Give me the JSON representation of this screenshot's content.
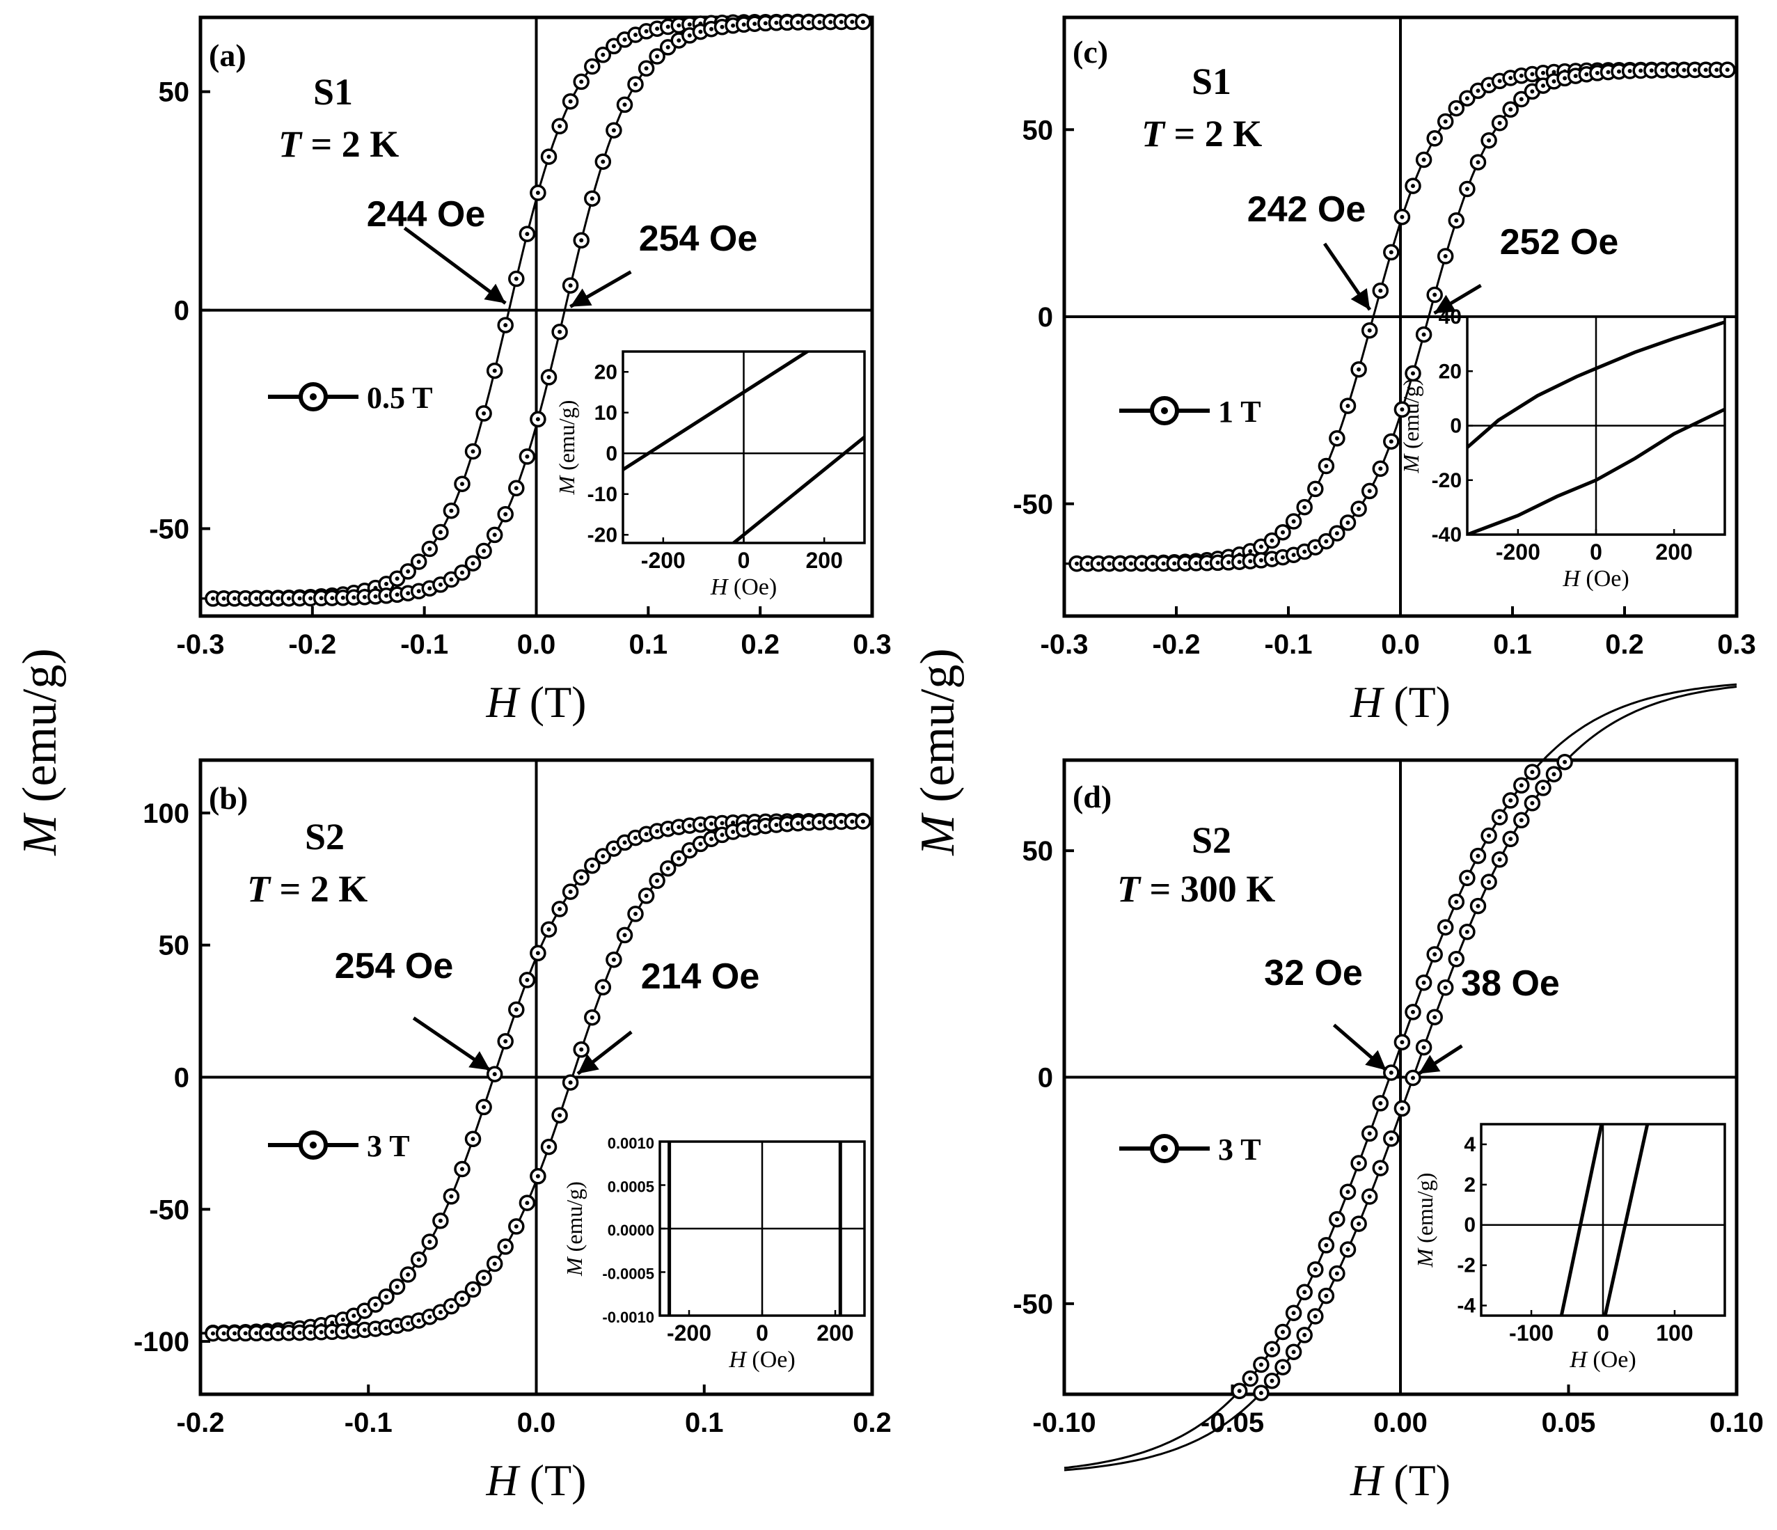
{
  "shared_ylabel": "M (emu/g)",
  "chart_data": [
    {
      "id": "a",
      "type": "line",
      "panel_label": "(a)",
      "sample": "S1",
      "temperature_var": "T",
      "temperature_text": "= 2 K",
      "xlabel_var": "H",
      "xlabel_unit": "(T)",
      "xlim": [
        -0.3,
        0.3
      ],
      "ylim": [
        -70,
        67
      ],
      "xticks": [
        -0.3,
        -0.2,
        -0.1,
        0.0,
        0.1,
        0.2,
        0.3
      ],
      "xtick_labels": [
        "-0.3",
        "-0.2",
        "-0.1",
        "0.0",
        "0.1",
        "0.2",
        "0.3"
      ],
      "yticks": [
        -50,
        0,
        50
      ],
      "ytick_labels": [
        "-50",
        "0",
        "50"
      ],
      "loop": {
        "ms": 66,
        "hc_left": -0.0244,
        "hc_right": 0.0254,
        "width": 0.06
      },
      "legend": {
        "label": "0.5 T",
        "position": "left-middle"
      },
      "annotations": [
        {
          "text": "244 Oe",
          "target_x": -0.0244,
          "target_y": 0
        },
        {
          "text": "254 Oe",
          "target_x": 0.0254,
          "target_y": 0
        }
      ],
      "inset": {
        "xlabel_var": "H",
        "xlabel_unit": "(Oe)",
        "ylabel_var": "M",
        "ylabel_unit": "(emu/g)",
        "xlim": [
          -300,
          300
        ],
        "ylim": [
          -22,
          25
        ],
        "xticks": [
          -200,
          0,
          200
        ],
        "xtick_labels": [
          "-200",
          "0",
          "200"
        ],
        "yticks": [
          20,
          10,
          0,
          -10,
          -20
        ],
        "ytick_labels": [
          "20",
          "10",
          "0",
          "-10",
          "-20"
        ],
        "lines": [
          {
            "x": [
              -300,
              300
            ],
            "y": [
              -4,
              34
            ]
          },
          {
            "x": [
              -300,
              300
            ],
            "y": [
              -44,
              4
            ]
          }
        ]
      }
    },
    {
      "id": "b",
      "type": "line",
      "panel_label": "(b)",
      "sample": "S2",
      "temperature_var": "T",
      "temperature_text": "= 2 K",
      "xlabel_var": "H",
      "xlabel_unit": "(T)",
      "xlim": [
        -0.2,
        0.2
      ],
      "ylim": [
        -120,
        120
      ],
      "xticks": [
        -0.2,
        -0.1,
        0.0,
        0.1,
        0.2
      ],
      "xtick_labels": [
        "-0.2",
        "-0.1",
        "0.0",
        "0.1",
        "0.2"
      ],
      "yticks": [
        -100,
        -50,
        0,
        50,
        100
      ],
      "ytick_labels": [
        "-100",
        "-50",
        "0",
        "50",
        "100"
      ],
      "loop": {
        "ms": 97,
        "hc_left": -0.0254,
        "hc_right": 0.0214,
        "width": 0.05
      },
      "legend": {
        "label": "3 T",
        "position": "left-middle"
      },
      "annotations": [
        {
          "text": "254 Oe",
          "target_x": -0.0254,
          "target_y": 0
        },
        {
          "text": "214 Oe",
          "target_x": 0.0214,
          "target_y": 0
        }
      ],
      "inset": {
        "xlabel_var": "H",
        "xlabel_unit": "(Oe)",
        "ylabel_var": "M",
        "ylabel_unit": "(emu/g)",
        "xlim": [
          -280,
          280
        ],
        "ylim": [
          -0.001,
          0.001
        ],
        "xticks": [
          -200,
          0,
          200
        ],
        "xtick_labels": [
          "-200",
          "0",
          "200"
        ],
        "yticks": [
          0.001,
          0.0005,
          0.0,
          -0.0005,
          -0.001
        ],
        "ytick_labels": [
          "0.0010",
          "0.0005",
          "0.0000",
          "-0.0005",
          "-0.0010"
        ],
        "lines": [
          {
            "x": [
              -254,
              -254
            ],
            "y": [
              -0.001,
              0.001
            ]
          },
          {
            "x": [
              214,
              214
            ],
            "y": [
              -0.001,
              0.001
            ]
          }
        ]
      }
    },
    {
      "id": "c",
      "type": "line",
      "panel_label": "(c)",
      "sample": "S1",
      "temperature_var": "T",
      "temperature_text": "= 2 K",
      "xlabel_var": "H",
      "xlabel_unit": "(T)",
      "xlim": [
        -0.3,
        0.3
      ],
      "ylim": [
        -80,
        80
      ],
      "xticks": [
        -0.3,
        -0.2,
        -0.1,
        0.0,
        0.1,
        0.2,
        0.3
      ],
      "xtick_labels": [
        "-0.3",
        "-0.2",
        "-0.1",
        "0.0",
        "0.1",
        "0.2",
        "0.3"
      ],
      "yticks": [
        -50,
        0,
        50
      ],
      "ytick_labels": [
        "-50",
        "0",
        "50"
      ],
      "loop": {
        "ms": 66,
        "hc_left": -0.0242,
        "hc_right": 0.0252,
        "width": 0.06
      },
      "legend": {
        "label": "1 T",
        "position": "left-middle"
      },
      "annotations": [
        {
          "text": "242 Oe",
          "target_x": -0.0242,
          "target_y": 0
        },
        {
          "text": "252 Oe",
          "target_x": 0.0252,
          "target_y": 0
        }
      ],
      "inset": {
        "xlabel_var": "H",
        "xlabel_unit": "(Oe)",
        "ylabel_var": "M",
        "ylabel_unit": "(emu/g)",
        "xlim": [
          -330,
          330
        ],
        "ylim": [
          -40,
          40
        ],
        "xticks": [
          -200,
          0,
          200
        ],
        "xtick_labels": [
          "-200",
          "0",
          "200"
        ],
        "yticks": [
          40,
          20,
          0,
          -20,
          -40
        ],
        "ytick_labels": [
          "40",
          "20",
          "0",
          "-20",
          "-40"
        ],
        "lines": [
          {
            "x": [
              -330,
              -250,
              -150,
              -50,
              0,
              100,
              200,
              330
            ],
            "y": [
              -8,
              2,
              11,
              18,
              21,
              27,
              32,
              38
            ]
          },
          {
            "x": [
              -330,
              -200,
              -100,
              0,
              100,
              200,
              330
            ],
            "y": [
              -40,
              -33,
              -26,
              -20,
              -12,
              -3,
              6
            ]
          }
        ]
      }
    },
    {
      "id": "d",
      "type": "line",
      "panel_label": "(d)",
      "sample": "S2",
      "temperature_var": "T",
      "temperature_text": "= 300 K",
      "xlabel_var": "H",
      "xlabel_unit": "(T)",
      "xlim": [
        -0.1,
        0.1
      ],
      "ylim": [
        -70,
        70
      ],
      "xticks": [
        -0.1,
        -0.05,
        0.0,
        0.05,
        0.1
      ],
      "xtick_labels": [
        "-0.10",
        "-0.05",
        "0.00",
        "0.05",
        "0.10"
      ],
      "yticks": [
        -50,
        0,
        50
      ],
      "ytick_labels": [
        "-50",
        "0",
        "50"
      ],
      "loop": {
        "ms": 88,
        "hc_left": -0.0032,
        "hc_right": 0.0038,
        "width": 0.042
      },
      "legend": {
        "label": "3 T",
        "position": "left-middle"
      },
      "annotations": [
        {
          "text": "32 Oe",
          "target_x": -0.0032,
          "target_y": 0
        },
        {
          "text": "38 Oe",
          "target_x": 0.0038,
          "target_y": 0
        }
      ],
      "inset": {
        "xlabel_var": "H",
        "xlabel_unit": "(Oe)",
        "ylabel_var": "M",
        "ylabel_unit": "(emu/g)",
        "xlim": [
          -170,
          170
        ],
        "ylim": [
          -4.5,
          5
        ],
        "xticks": [
          -100,
          0,
          100
        ],
        "xtick_labels": [
          "-100",
          "0",
          "100"
        ],
        "yticks": [
          4,
          2,
          0,
          -2,
          -4
        ],
        "ytick_labels": [
          "4",
          "2",
          "0",
          "-2",
          "-4"
        ],
        "lines": [
          {
            "x": [
              -58,
              -2
            ],
            "y": [
              -4.5,
              5
            ]
          },
          {
            "x": [
              3,
              62
            ],
            "y": [
              -4.5,
              5
            ]
          }
        ]
      }
    }
  ]
}
